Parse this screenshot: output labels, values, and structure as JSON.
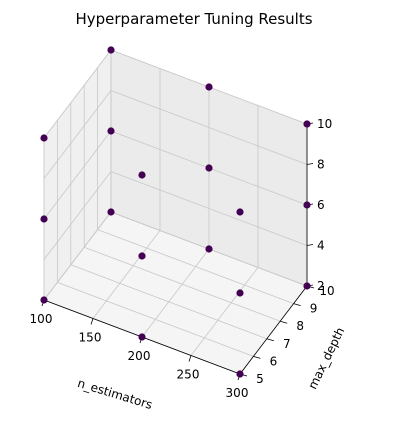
{
  "chart_data": {
    "type": "scatter3d",
    "title": "Hyperparameter Tuning Results",
    "xlabel": "n_estimators",
    "ylabel": "max_depth",
    "zlabel": "",
    "xlim": [
      100,
      300
    ],
    "ylim": [
      5,
      10
    ],
    "zlim": [
      2,
      10
    ],
    "xticks": [
      100,
      150,
      200,
      250,
      300
    ],
    "yticks": [
      5,
      6,
      7,
      8,
      9,
      10
    ],
    "zticks": [
      2,
      4,
      6,
      8,
      10
    ],
    "grid": true,
    "point_color": "#440154",
    "points": [
      {
        "x": 100,
        "y": 5,
        "z": 2
      },
      {
        "x": 100,
        "y": 5,
        "z": 6
      },
      {
        "x": 100,
        "y": 5,
        "z": 10
      },
      {
        "x": 100,
        "y": 10,
        "z": 2
      },
      {
        "x": 100,
        "y": 10,
        "z": 6
      },
      {
        "x": 100,
        "y": 10,
        "z": 10
      },
      {
        "x": 200,
        "y": 5,
        "z": 2
      },
      {
        "x": 200,
        "y": 5,
        "z": 6
      },
      {
        "x": 200,
        "y": 5,
        "z": 10
      },
      {
        "x": 200,
        "y": 10,
        "z": 2
      },
      {
        "x": 200,
        "y": 10,
        "z": 6
      },
      {
        "x": 200,
        "y": 10,
        "z": 10
      },
      {
        "x": 300,
        "y": 5,
        "z": 2
      },
      {
        "x": 300,
        "y": 5,
        "z": 6
      },
      {
        "x": 300,
        "y": 5,
        "z": 10
      },
      {
        "x": 300,
        "y": 10,
        "z": 2
      },
      {
        "x": 300,
        "y": 10,
        "z": 6
      },
      {
        "x": 300,
        "y": 10,
        "z": 10
      }
    ]
  }
}
